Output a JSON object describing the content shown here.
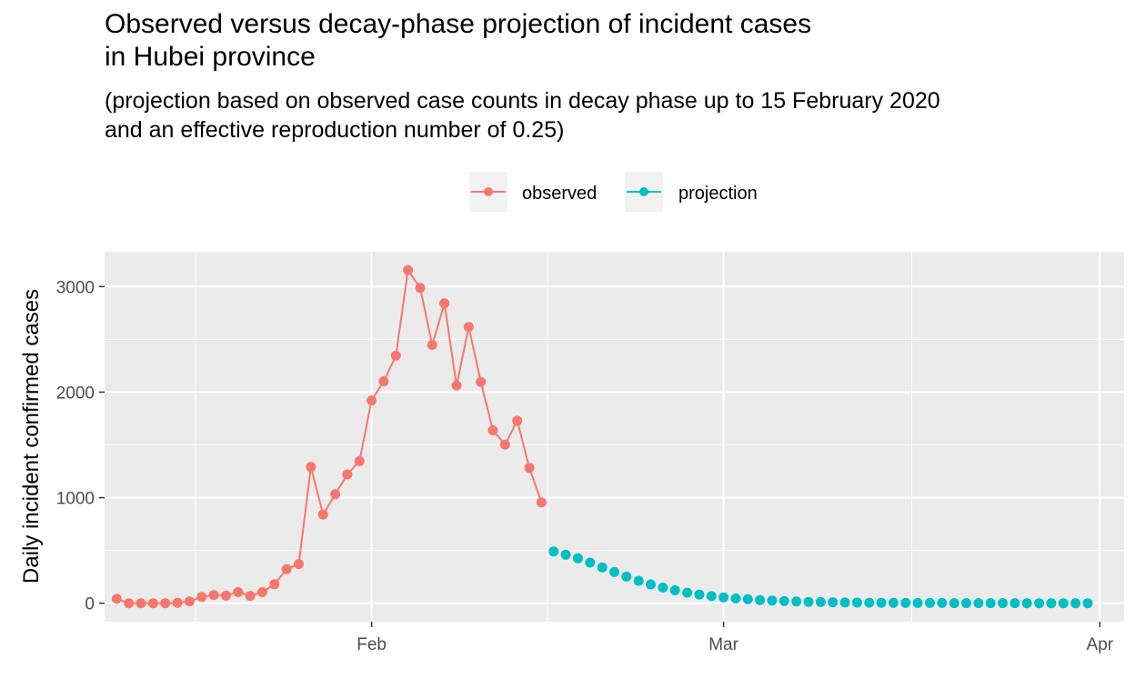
{
  "title_line1": "Observed versus decay-phase projection of incident cases",
  "title_line2": "in Hubei province",
  "subtitle_line1": "(projection based on observed case counts in decay phase up to 15 February 2020",
  "subtitle_line2": "and an effective reproduction number of 0.25)",
  "colors": {
    "observed": "#F8766D",
    "projection": "#00BFC4",
    "panel": "#EBEBEB",
    "grid": "#FFFFFF"
  },
  "chart_data": {
    "type": "line",
    "xlabel": "",
    "ylabel": "Daily incident confirmed cases",
    "ylim": [
      -175,
      3330
    ],
    "xlim": [
      "2020-01-10",
      "2020-04-03"
    ],
    "grid": true,
    "legend_position": "top",
    "x_ticks": [
      {
        "date": "2020-02-01",
        "label": "Feb"
      },
      {
        "date": "2020-03-01",
        "label": "Mar"
      },
      {
        "date": "2020-04-01",
        "label": "Apr"
      }
    ],
    "y_ticks": [
      0,
      1000,
      2000,
      3000
    ],
    "series": [
      {
        "name": "observed",
        "color": "#F8766D",
        "connected": true,
        "start_date": "2020-01-11",
        "values": [
          41,
          0,
          0,
          0,
          0,
          4,
          17,
          59,
          77,
          72,
          105,
          69,
          105,
          180,
          323,
          371,
          1291,
          840,
          1032,
          1220,
          1347,
          1921,
          2103,
          2345,
          3156,
          2987,
          2447,
          2841,
          2063,
          2618,
          2097,
          1638,
          1503,
          1728,
          1282,
          956
        ]
      },
      {
        "name": "projection",
        "color": "#00BFC4",
        "connected": false,
        "start_date": "2020-02-16",
        "values": [
          490,
          460,
          425,
          385,
          340,
          295,
          252,
          212,
          178,
          148,
          122,
          100,
          82,
          67,
          55,
          45,
          37,
          30,
          25,
          20,
          16,
          13,
          11,
          9,
          7,
          6,
          5,
          4,
          3,
          3,
          2,
          2,
          2,
          1,
          1,
          1,
          1,
          1,
          1,
          0,
          0,
          0,
          0,
          0,
          0
        ]
      }
    ]
  }
}
